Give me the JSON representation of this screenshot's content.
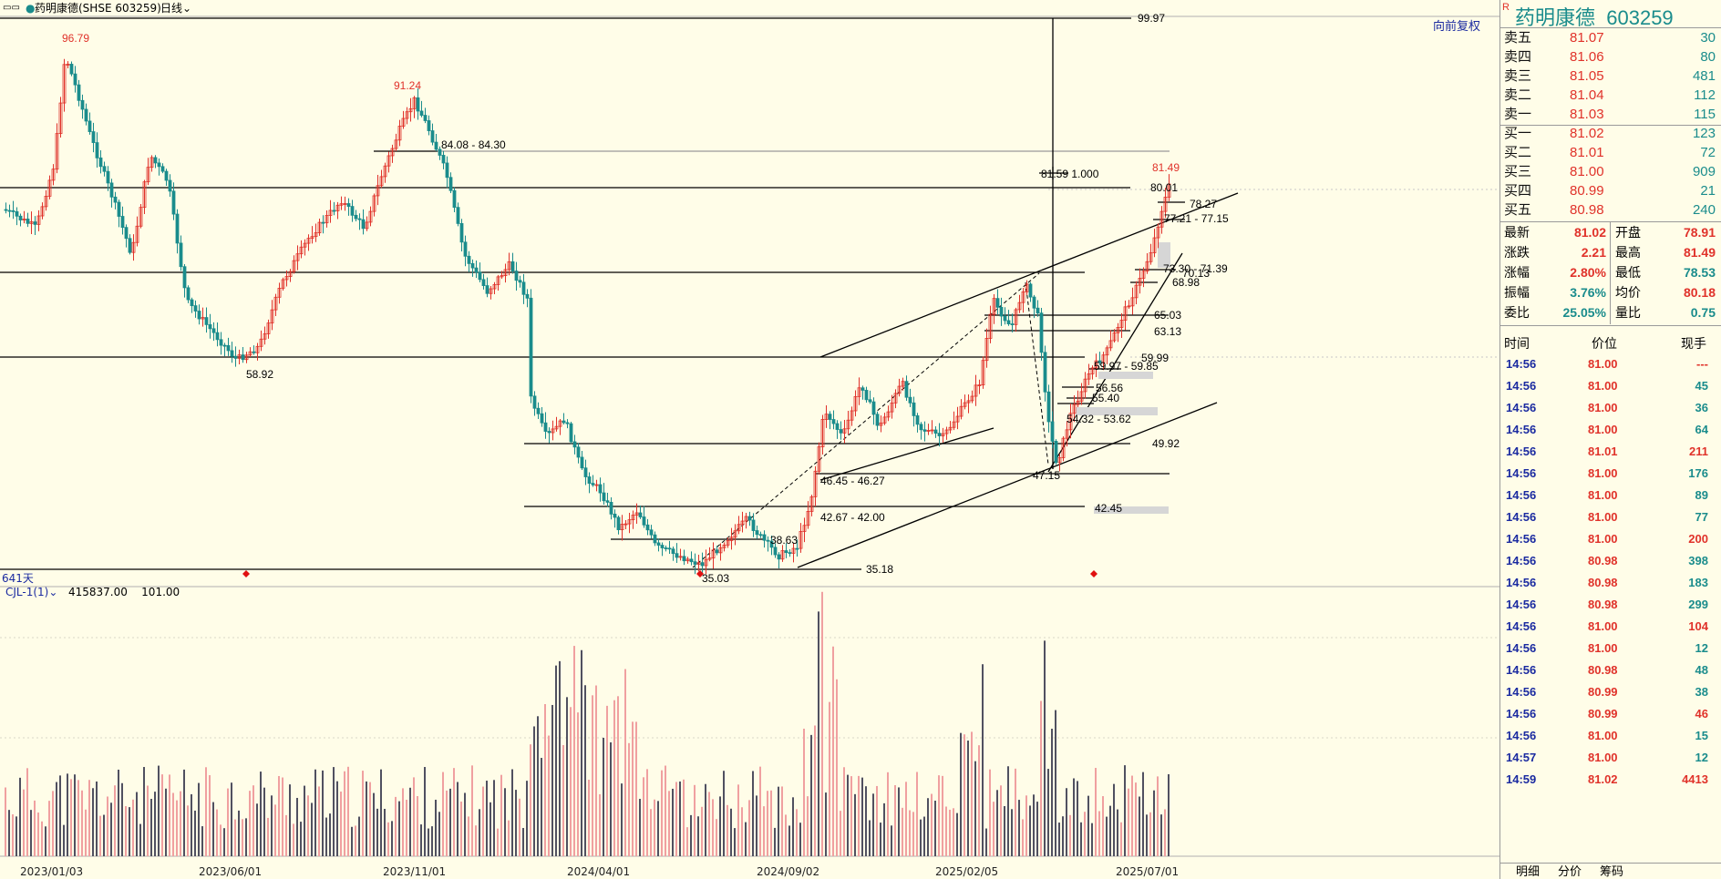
{
  "header": {
    "title": "药明康德(SHSE 603259)",
    "period": "日线",
    "fuquan_button": "向前复权"
  },
  "chart_labels": {
    "days": "641天",
    "indicator_name": "CJL-1(1)",
    "indicator_value1": "415837.00",
    "indicator_value2": "101.00",
    "xaxis": [
      "2023/01/03",
      "2023/06/01",
      "2023/11/01",
      "2024/04/01",
      "2024/09/02",
      "2025/02/05",
      "2025/07/01"
    ]
  },
  "annotations": [
    {
      "text": "99.97"
    },
    {
      "text": "96.79"
    },
    {
      "text": "91.24"
    },
    {
      "text": "84.08 - 84.30"
    },
    {
      "text": "81.59  1.000"
    },
    {
      "text": "81.49"
    },
    {
      "text": "80.01"
    },
    {
      "text": "78.27"
    },
    {
      "text": "77.21 - 77.15"
    },
    {
      "text": "73.30 - 71.39"
    },
    {
      "text": "70.13"
    },
    {
      "text": "68.98"
    },
    {
      "text": "65.03"
    },
    {
      "text": "63.13"
    },
    {
      "text": "59.99"
    },
    {
      "text": "59.97 - 59.85"
    },
    {
      "text": "58.92"
    },
    {
      "text": "56.56"
    },
    {
      "text": "55.40"
    },
    {
      "text": "54.32 - 53.62"
    },
    {
      "text": "49.92"
    },
    {
      "text": "47.15"
    },
    {
      "text": "46.45 - 46.27"
    },
    {
      "text": "42.67 - 42.00"
    },
    {
      "text": "42.45"
    },
    {
      "text": "38.63"
    },
    {
      "text": "35.18"
    },
    {
      "text": "35.03"
    }
  ],
  "side": {
    "r_mark": "R",
    "stock_name": "药明康德",
    "stock_code": "603259",
    "order_book": [
      {
        "label": "卖五",
        "price": "81.07",
        "vol": "30"
      },
      {
        "label": "卖四",
        "price": "81.06",
        "vol": "80"
      },
      {
        "label": "卖三",
        "price": "81.05",
        "vol": "481"
      },
      {
        "label": "卖二",
        "price": "81.04",
        "vol": "112"
      },
      {
        "label": "卖一",
        "price": "81.03",
        "vol": "115"
      },
      {
        "label": "买一",
        "price": "81.02",
        "vol": "123"
      },
      {
        "label": "买二",
        "price": "81.01",
        "vol": "72"
      },
      {
        "label": "买三",
        "price": "81.00",
        "vol": "909"
      },
      {
        "label": "买四",
        "price": "80.99",
        "vol": "21"
      },
      {
        "label": "买五",
        "price": "80.98",
        "vol": "240"
      }
    ],
    "quote": [
      {
        "l1": "最新",
        "v1": "81.02",
        "l2": "开盘",
        "v2": "78.91"
      },
      {
        "l1": "涨跌",
        "v1": "2.21",
        "l2": "最高",
        "v2": "81.49"
      },
      {
        "l1": "涨幅",
        "v1": "2.80%",
        "l2": "最低",
        "v2": "78.53"
      },
      {
        "l1": "振幅",
        "v1": "3.76%",
        "l2": "均价",
        "v2": "80.18"
      },
      {
        "l1": "委比",
        "v1": "25.05%",
        "l2": "量比",
        "v2": "0.75"
      }
    ],
    "tick_headers": {
      "time": "时间",
      "price": "价位",
      "vol": "现手"
    },
    "ticks": [
      {
        "t": "14:56",
        "p": "81.00",
        "v": "---"
      },
      {
        "t": "14:56",
        "p": "81.00",
        "v": "45"
      },
      {
        "t": "14:56",
        "p": "81.00",
        "v": "36"
      },
      {
        "t": "14:56",
        "p": "81.00",
        "v": "64"
      },
      {
        "t": "14:56",
        "p": "81.01",
        "v": "211"
      },
      {
        "t": "14:56",
        "p": "81.00",
        "v": "176"
      },
      {
        "t": "14:56",
        "p": "81.00",
        "v": "89"
      },
      {
        "t": "14:56",
        "p": "81.00",
        "v": "77"
      },
      {
        "t": "14:56",
        "p": "81.00",
        "v": "200"
      },
      {
        "t": "14:56",
        "p": "80.98",
        "v": "398"
      },
      {
        "t": "14:56",
        "p": "80.98",
        "v": "183"
      },
      {
        "t": "14:56",
        "p": "80.98",
        "v": "299"
      },
      {
        "t": "14:56",
        "p": "81.00",
        "v": "104"
      },
      {
        "t": "14:56",
        "p": "81.00",
        "v": "12"
      },
      {
        "t": "14:56",
        "p": "80.98",
        "v": "48"
      },
      {
        "t": "14:56",
        "p": "80.99",
        "v": "38"
      },
      {
        "t": "14:56",
        "p": "80.99",
        "v": "46"
      },
      {
        "t": "14:56",
        "p": "81.00",
        "v": "15"
      },
      {
        "t": "14:57",
        "p": "81.00",
        "v": "12"
      },
      {
        "t": "14:59",
        "p": "81.02",
        "v": "4413"
      }
    ],
    "tabs": [
      "明细",
      "分价",
      "筹码"
    ]
  },
  "colors": {
    "up": "#e0322a",
    "down": "#1a8c8c",
    "bg": "#fffde8",
    "line": "#000000"
  }
}
